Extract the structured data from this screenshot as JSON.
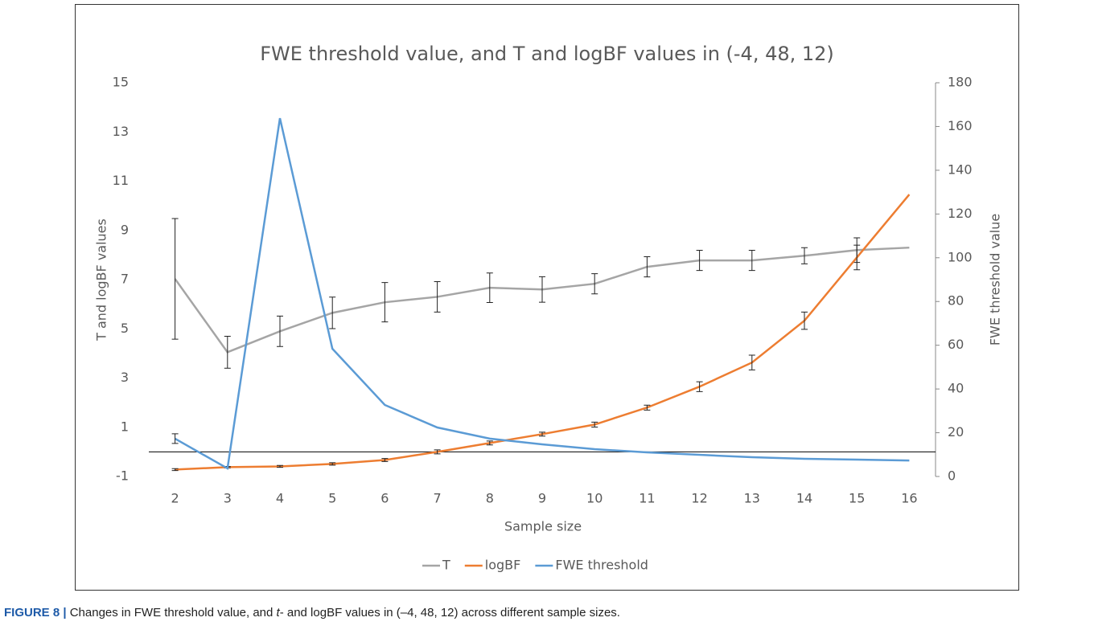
{
  "chart_data": {
    "type": "line",
    "title": "FWE threshold value, and T and logBF values in (-4, 48, 12)",
    "xlabel": "Sample size",
    "ylabel": "T and logBF values",
    "y2label": "FWE threshold value",
    "categories": [
      "2",
      "3",
      "4",
      "5",
      "6",
      "7",
      "8",
      "9",
      "10",
      "11",
      "12",
      "13",
      "14",
      "15",
      "16"
    ],
    "ylim": [
      -1,
      15
    ],
    "yticks": [
      -1,
      1,
      3,
      5,
      7,
      9,
      11,
      13,
      15
    ],
    "y2lim": [
      0,
      180
    ],
    "y2ticks": [
      0,
      20,
      40,
      60,
      80,
      100,
      120,
      140,
      160,
      180
    ],
    "legend": "bottom",
    "series": [
      {
        "name": "T",
        "color": "#a5a5a5",
        "values": [
          7.03,
          4.05,
          4.9,
          5.65,
          6.08,
          6.3,
          6.67,
          6.6,
          6.83,
          7.52,
          7.78,
          7.78,
          7.97,
          8.2,
          8.3
        ],
        "errors": [
          2.45,
          0.65,
          0.62,
          0.64,
          0.8,
          0.62,
          0.6,
          0.52,
          0.41,
          0.41,
          0.41,
          0.41,
          0.33,
          0.5,
          null
        ]
      },
      {
        "name": "logBF",
        "color": "#ed7d31",
        "values": [
          -0.72,
          -0.62,
          -0.59,
          -0.49,
          -0.33,
          0.0,
          0.36,
          0.72,
          1.11,
          1.8,
          2.65,
          3.63,
          5.33,
          7.9,
          10.46
        ],
        "errors": [
          0.04,
          0.03,
          0.04,
          0.05,
          0.06,
          0.08,
          0.08,
          0.08,
          0.1,
          0.1,
          0.2,
          0.3,
          0.35,
          0.5,
          null
        ]
      },
      {
        "name": "FWE threshold",
        "color": "#5b9bd5",
        "axis": "y2",
        "values": [
          17.3,
          3.7,
          163.8,
          58.4,
          32.7,
          22.4,
          17.3,
          14.7,
          12.5,
          11.0,
          9.9,
          8.8,
          8.1,
          7.7,
          7.3
        ],
        "errors": [
          2.2,
          null,
          null,
          null,
          null,
          null,
          null,
          null,
          null,
          null,
          null,
          null,
          null,
          null,
          null
        ]
      }
    ]
  },
  "caption": {
    "label": "FIGURE 8 |",
    "text": [
      "Changes in FWE threshold value, and ",
      "t",
      "- and logBF values in (–4, 48, 12) across different sample sizes."
    ]
  }
}
